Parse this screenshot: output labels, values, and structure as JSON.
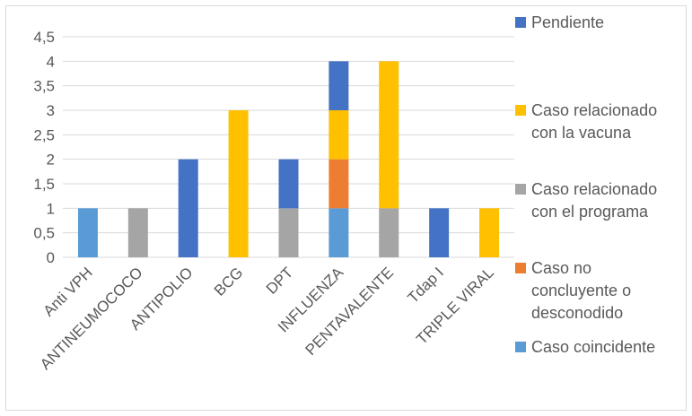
{
  "chart_data": {
    "type": "bar",
    "stacked": true,
    "categories": [
      "Anti VPH",
      "ANTINEUMOCOCO",
      "ANTIPOLIO",
      "BCG",
      "DPT",
      "INFLUENZA",
      "PENTAVALENTE",
      "Tdap I",
      "TRIPLE VIRAL"
    ],
    "yticks": [
      "0",
      "0,5",
      "1",
      "1,5",
      "2",
      "2,5",
      "3",
      "3,5",
      "4",
      "4,5"
    ],
    "ylim": [
      0,
      4.5
    ],
    "grid": true,
    "legend_position": "right",
    "series": [
      {
        "name": "Caso coincidente",
        "label_lines": [
          "Caso coincidente"
        ],
        "color": "#5b9bd5",
        "values": [
          1,
          0,
          0,
          0,
          0,
          1,
          0,
          0,
          0
        ]
      },
      {
        "name": "Caso no concluyente o desconodido",
        "label_lines": [
          "Caso no",
          "concluyente o",
          "desconodido"
        ],
        "color": "#ed7d31",
        "values": [
          0,
          0,
          0,
          0,
          0,
          1,
          0,
          0,
          0
        ]
      },
      {
        "name": "Caso relacionado con el programa",
        "label_lines": [
          "Caso relacionado",
          "con el programa"
        ],
        "color": "#a5a5a5",
        "values": [
          0,
          1,
          0,
          0,
          1,
          0,
          1,
          0,
          0
        ]
      },
      {
        "name": "Caso relacionado con la vacuna",
        "label_lines": [
          "Caso relacionado",
          "con la vacuna"
        ],
        "color": "#ffc000",
        "values": [
          0,
          0,
          0,
          3,
          0,
          1,
          3,
          0,
          1
        ]
      },
      {
        "name": "Pendiente",
        "label_lines": [
          "Pendiente"
        ],
        "color": "#4472c4",
        "values": [
          0,
          0,
          2,
          0,
          1,
          1,
          0,
          1,
          0
        ]
      }
    ],
    "legend_order": [
      "Pendiente",
      "Caso relacionado con la vacuna",
      "Caso relacionado con el programa",
      "Caso no concluyente o desconodido",
      "Caso coincidente"
    ]
  }
}
